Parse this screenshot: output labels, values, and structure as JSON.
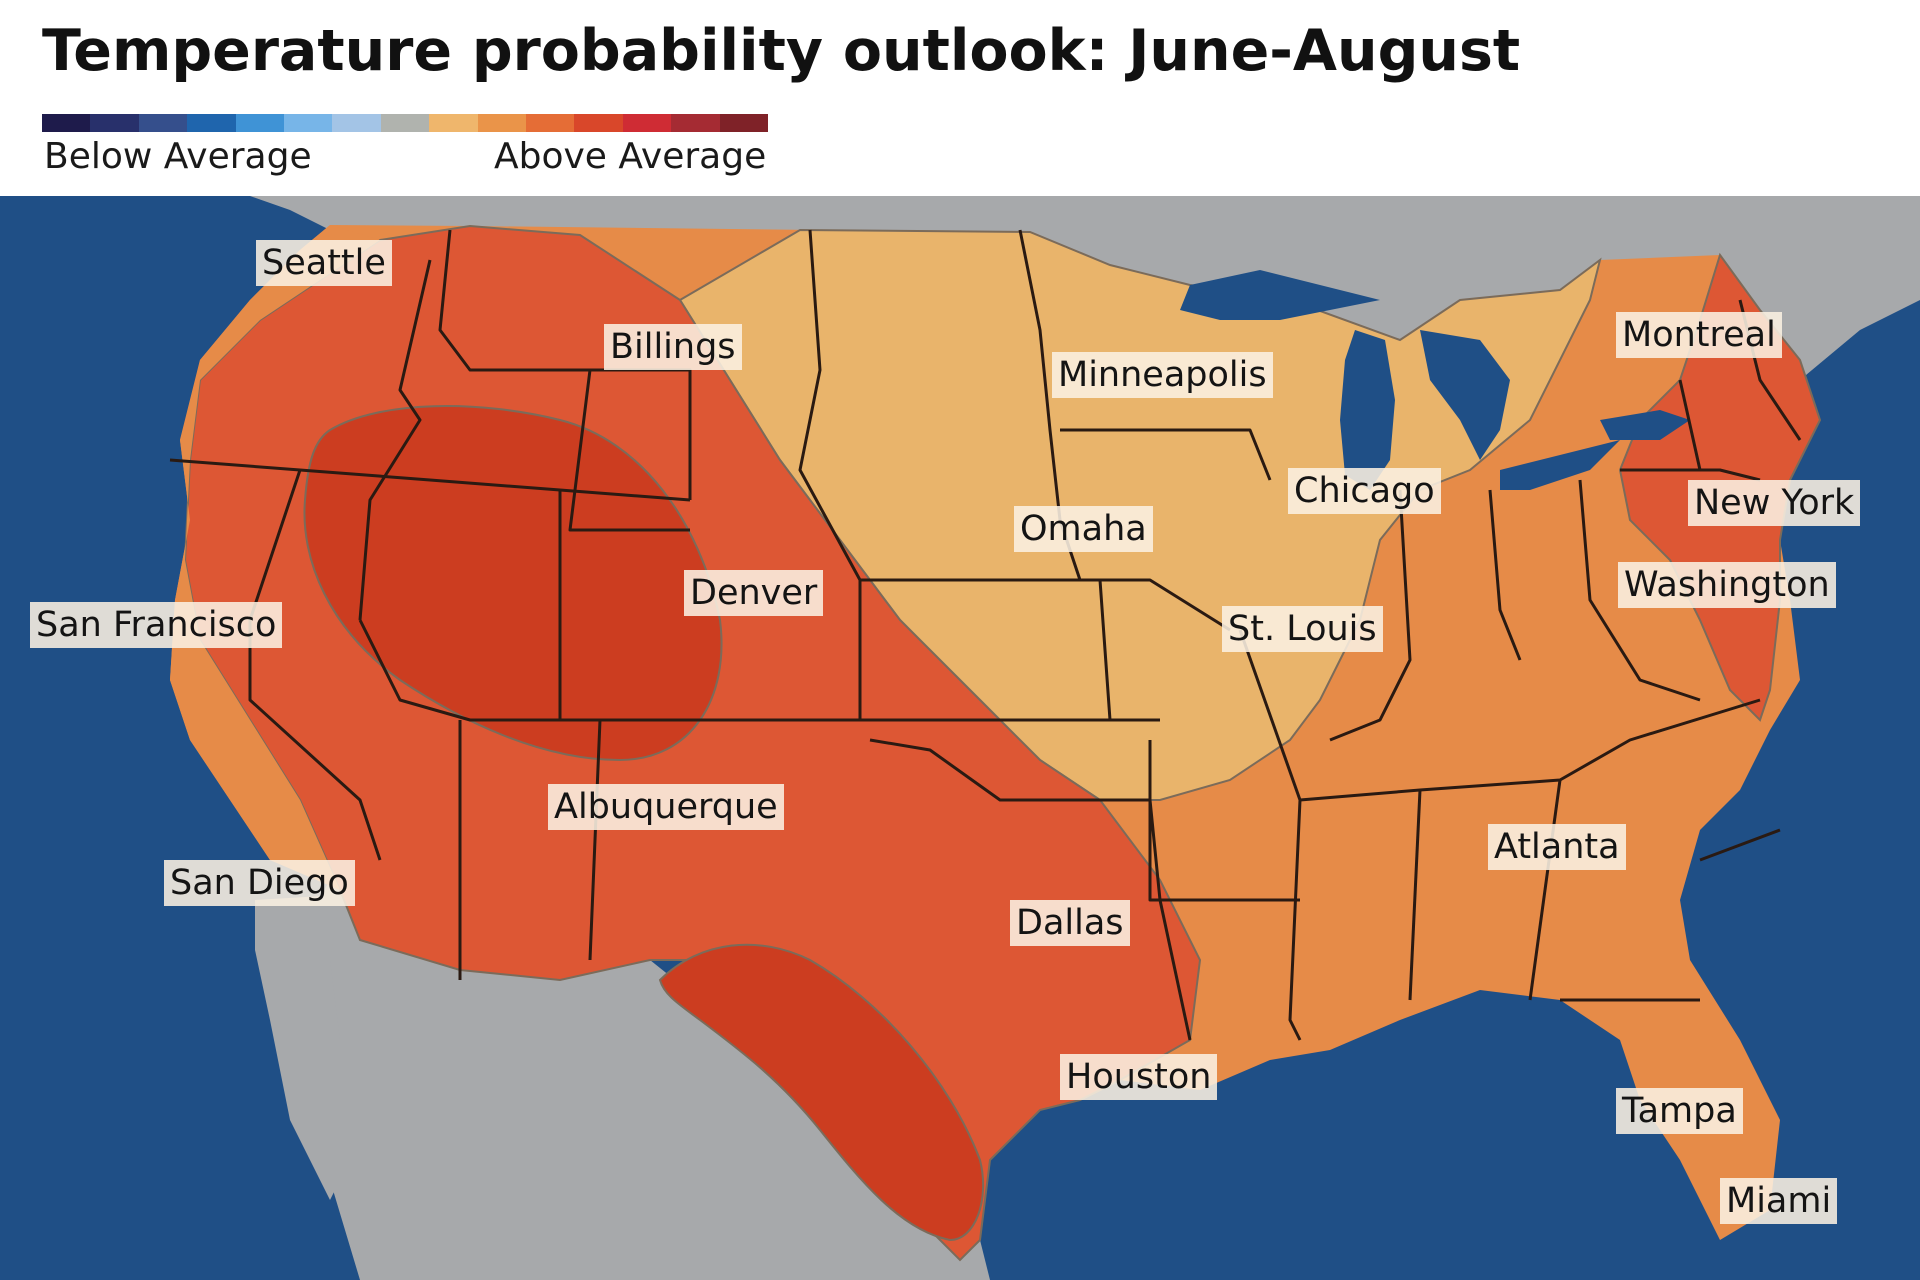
{
  "title": "Temperature probability outlook: June-August",
  "legend": {
    "below_label": "Below Average",
    "above_label": "Above Average",
    "colors": [
      "#1e1b4b",
      "#28306b",
      "#354f8c",
      "#1f65ad",
      "#3f93d6",
      "#77b5e8",
      "#a3c4e6",
      "#b0b3ae",
      "#efb66c",
      "#ea9449",
      "#e56d36",
      "#d9472a",
      "#cf2c34",
      "#a52b33",
      "#7f2228"
    ]
  },
  "map": {
    "colors": {
      "ocean": "#1f4f86",
      "land_other": "#a7a9ab",
      "tier_light": "#e9b46b",
      "tier_mid": "#e68b48",
      "tier_high": "#dd5734",
      "tier_highest": "#cc3d20",
      "borders": "#2a1a12"
    },
    "cities": [
      {
        "id": "seattle",
        "label": "Seattle"
      },
      {
        "id": "billings",
        "label": "Billings"
      },
      {
        "id": "minneapolis",
        "label": "Minneapolis"
      },
      {
        "id": "montreal",
        "label": "Montreal"
      },
      {
        "id": "chicago",
        "label": "Chicago"
      },
      {
        "id": "omaha",
        "label": "Omaha"
      },
      {
        "id": "new_york",
        "label": "New York"
      },
      {
        "id": "denver",
        "label": "Denver"
      },
      {
        "id": "washington",
        "label": "Washington"
      },
      {
        "id": "san_francisco",
        "label": "San Francisco"
      },
      {
        "id": "st_louis",
        "label": "St. Louis"
      },
      {
        "id": "albuquerque",
        "label": "Albuquerque"
      },
      {
        "id": "atlanta",
        "label": "Atlanta"
      },
      {
        "id": "san_diego",
        "label": "San Diego"
      },
      {
        "id": "dallas",
        "label": "Dallas"
      },
      {
        "id": "houston",
        "label": "Houston"
      },
      {
        "id": "tampa",
        "label": "Tampa"
      },
      {
        "id": "miami",
        "label": "Miami"
      }
    ]
  }
}
